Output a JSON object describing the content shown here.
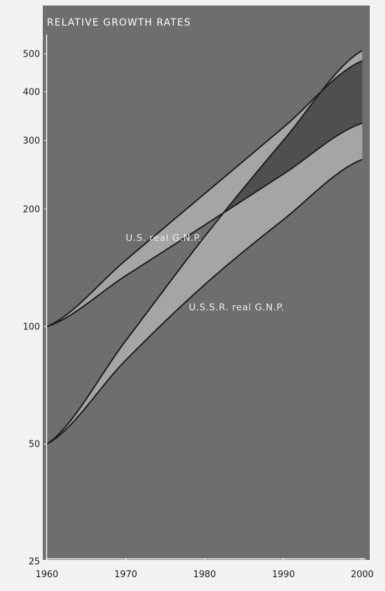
{
  "chart_data": {
    "type": "area",
    "title": "RELATIVE GROWTH RATES",
    "xlabel": "",
    "ylabel": "",
    "y_scale": "log",
    "xlim": [
      1960,
      2000
    ],
    "ylim": [
      25,
      560
    ],
    "x_ticks": [
      1960,
      1970,
      1980,
      1990,
      2000
    ],
    "y_ticks": [
      25,
      50,
      100,
      200,
      300,
      400,
      500
    ],
    "grid": false,
    "legend": "none",
    "series": [
      {
        "name": "U.S. real G.N.P.",
        "label_x": 1960.5,
        "label_y": 200,
        "x": [
          1960,
          1970,
          1980,
          1990,
          2000
        ],
        "upper": [
          100,
          148,
          219,
          324,
          480
        ],
        "lower": [
          100,
          135,
          182,
          246,
          332
        ]
      },
      {
        "name": "U.S.S.R. real G.N.P.",
        "label_x": 1968,
        "label_y": 110,
        "x": [
          1960,
          1970,
          1980,
          1990,
          2000
        ],
        "upper": [
          50,
          92,
          170,
          300,
          510
        ],
        "lower": [
          50,
          82,
          128,
          188,
          268
        ]
      }
    ],
    "colors": {
      "page": "#f2f2f2",
      "plot_background": "#6e6e6e",
      "band_fill": "#a5a5a5",
      "overlap_fill": "#4f4f4f",
      "band_stroke": "#1c1c1c",
      "axis": "#f5f5f5",
      "title_text": "#ffffff",
      "series_text": "#ececec",
      "tick_text": "#1a1a1a"
    }
  }
}
